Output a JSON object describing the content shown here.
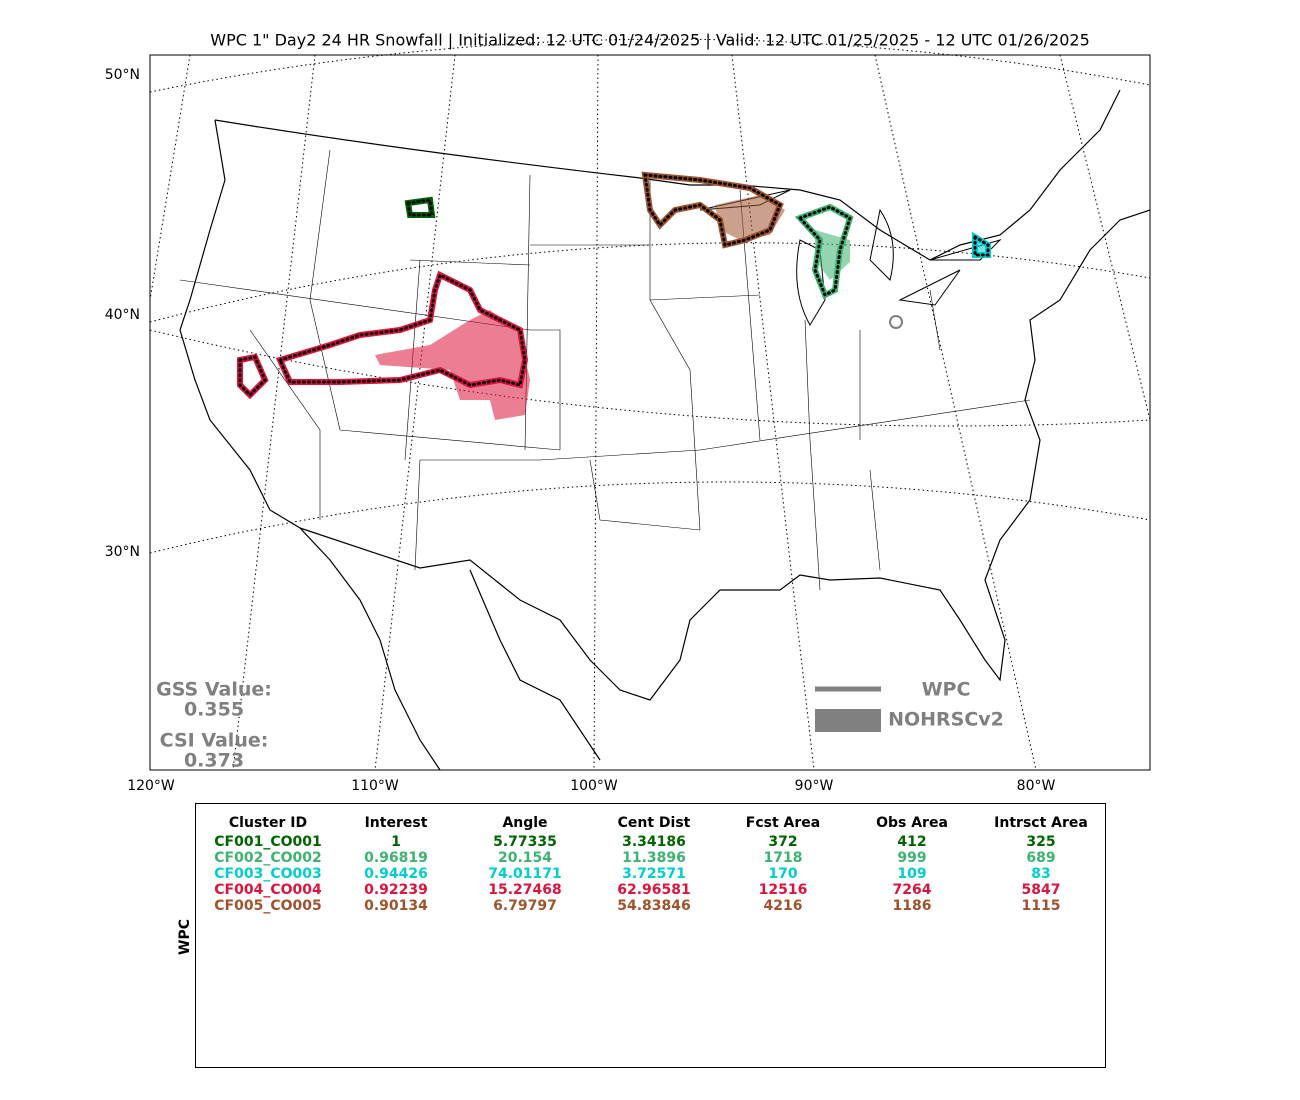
{
  "title": "WPC 1\" Day2 24 HR Snowfall | Initialized: 12 UTC 01/24/2025 | Valid: 12 UTC 01/25/2025 - 12 UTC 01/26/2025",
  "map": {
    "lat_labels": [
      "50°N",
      "40°N",
      "30°N"
    ],
    "lon_labels": [
      "120°W",
      "110°W",
      "100°W",
      "90°W",
      "80°W"
    ]
  },
  "scores": {
    "gss_label": "GSS Value:",
    "gss": 0.355,
    "csi_label": "CSI Value:",
    "csi": 0.373
  },
  "legend": {
    "line": "WPC",
    "fill": "NOHRSCv2"
  },
  "table": {
    "side_label": "WPC",
    "headers": [
      "Cluster ID",
      "Interest",
      "Angle",
      "Cent Dist",
      "Fcst Area",
      "Obs Area",
      "Intrsct Area"
    ],
    "rows": [
      {
        "color": "#006400",
        "cells": [
          "CF001_CO001",
          1,
          5.77335,
          3.34186,
          372,
          412,
          325
        ]
      },
      {
        "color": "#3cb371",
        "cells": [
          "CF002_CO002",
          0.96819,
          20.154,
          11.3896,
          1718,
          999,
          689
        ]
      },
      {
        "color": "#00ced1",
        "cells": [
          "CF003_CO003",
          0.94426,
          74.01171,
          3.72571,
          170,
          109,
          83
        ]
      },
      {
        "color": "#dc143c",
        "cells": [
          "CF004_CO004",
          0.92239,
          15.27468,
          62.96581,
          12516,
          7264,
          5847
        ]
      },
      {
        "color": "#a0522d",
        "cells": [
          "CF005_CO005",
          0.90134,
          6.79797,
          54.83846,
          4216,
          1186,
          1115
        ]
      }
    ]
  }
}
